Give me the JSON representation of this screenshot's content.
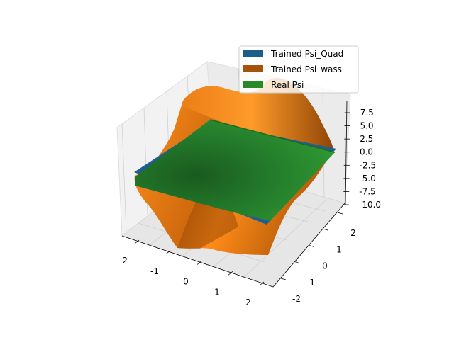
{
  "chart_data": {
    "type": "surface3d",
    "title": "",
    "xlabel": "",
    "ylabel": "",
    "zlabel": "",
    "x_ticks": [
      "-2",
      "-1",
      "0",
      "1",
      "2"
    ],
    "y_ticks": [
      "-2",
      "-1",
      "0",
      "1",
      "2"
    ],
    "z_ticks": [
      "-10.0",
      "-7.5",
      "-5.0",
      "-2.5",
      "0.0",
      "2.5",
      "5.0",
      "7.5"
    ],
    "xlim": [
      -2,
      2
    ],
    "ylim": [
      -2,
      2
    ],
    "zlim": [
      -10,
      10
    ],
    "grid": true,
    "legend_position": "top-right",
    "series": [
      {
        "name": "Trained Psi_Quad",
        "color": "#1b5e8c"
      },
      {
        "name": "Trained Psi_wass",
        "color": "#a6530a"
      },
      {
        "name": "Real Psi",
        "color": "#2a8a2a"
      }
    ],
    "surface_colors": {
      "wass_light": "#ff8c1a",
      "wass_dark": "#9a4a06",
      "real_light": "#2f9a33",
      "real_dark": "#1a5e1e",
      "quad": "#1f5f8f"
    }
  }
}
